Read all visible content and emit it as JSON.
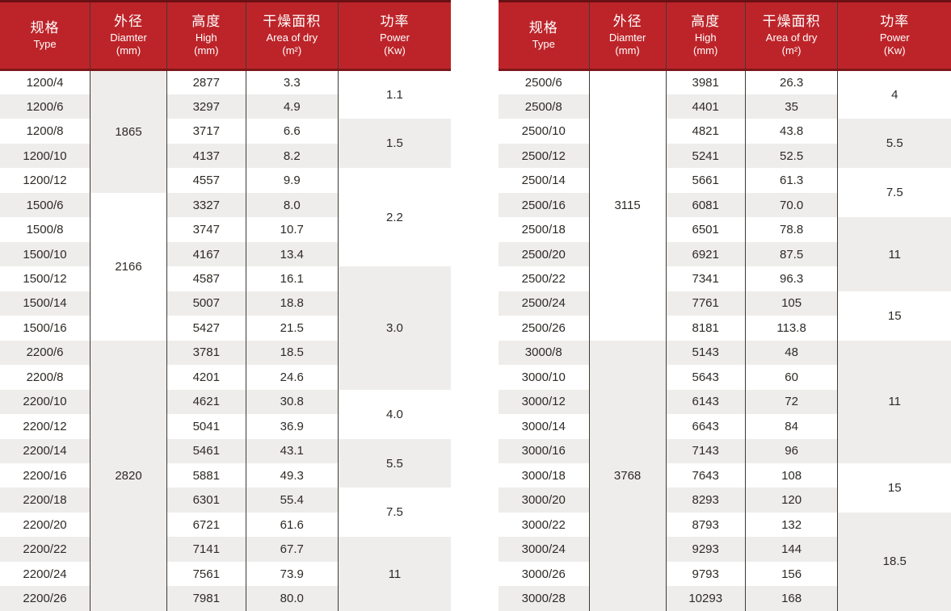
{
  "palette": {
    "header_red": "#bd2429",
    "maroon_top": "#6b1013",
    "maroon_line": "#7d171a",
    "stripe_gray": "#eeedeb",
    "row_white": "#ffffff",
    "border": "#3e3a35",
    "text": "#2e2a26",
    "header_text": "#ffffff"
  },
  "columns": [
    {
      "key": "type",
      "zh": "规格",
      "en": "Type",
      "unit": ""
    },
    {
      "key": "diameter",
      "zh": "外径",
      "en": "Diamter",
      "unit": "(mm)"
    },
    {
      "key": "high",
      "zh": "高度",
      "en": "High",
      "unit": "(mm)"
    },
    {
      "key": "area",
      "zh": "干燥面积",
      "en": "Area of dry",
      "unit": "(m²)"
    },
    {
      "key": "power",
      "zh": "功率",
      "en": "Power",
      "unit": "(Kw)"
    }
  ],
  "tables": [
    {
      "id": "left",
      "rows": [
        {
          "type": "1200/4",
          "high": "2877",
          "area": "3.3"
        },
        {
          "type": "1200/6",
          "high": "3297",
          "area": "4.9"
        },
        {
          "type": "1200/8",
          "high": "3717",
          "area": "6.6"
        },
        {
          "type": "1200/10",
          "high": "4137",
          "area": "8.2"
        },
        {
          "type": "1200/12",
          "high": "4557",
          "area": "9.9"
        },
        {
          "type": "1500/6",
          "high": "3327",
          "area": "8.0"
        },
        {
          "type": "1500/8",
          "high": "3747",
          "area": "10.7"
        },
        {
          "type": "1500/10",
          "high": "4167",
          "area": "13.4"
        },
        {
          "type": "1500/12",
          "high": "4587",
          "area": "16.1"
        },
        {
          "type": "1500/14",
          "high": "5007",
          "area": "18.8"
        },
        {
          "type": "1500/16",
          "high": "5427",
          "area": "21.5"
        },
        {
          "type": "2200/6",
          "high": "3781",
          "area": "18.5"
        },
        {
          "type": "2200/8",
          "high": "4201",
          "area": "24.6"
        },
        {
          "type": "2200/10",
          "high": "4621",
          "area": "30.8"
        },
        {
          "type": "2200/12",
          "high": "5041",
          "area": "36.9"
        },
        {
          "type": "2200/14",
          "high": "5461",
          "area": "43.1"
        },
        {
          "type": "2200/16",
          "high": "5881",
          "area": "49.3"
        },
        {
          "type": "2200/18",
          "high": "6301",
          "area": "55.4"
        },
        {
          "type": "2200/20",
          "high": "6721",
          "area": "61.6"
        },
        {
          "type": "2200/22",
          "high": "7141",
          "area": "67.7"
        },
        {
          "type": "2200/24",
          "high": "7561",
          "area": "73.9"
        },
        {
          "type": "2200/26",
          "high": "7981",
          "area": "80.0"
        }
      ],
      "diameter_groups": [
        {
          "value": "1865",
          "rowspan": 5,
          "shade": "gray"
        },
        {
          "value": "2166",
          "rowspan": 6,
          "shade": "white"
        },
        {
          "value": "2820",
          "rowspan": 11,
          "shade": "gray"
        }
      ],
      "power_groups": [
        {
          "value": "1.1",
          "rowspan": 2,
          "shade": "white"
        },
        {
          "value": "1.5",
          "rowspan": 2,
          "shade": "gray"
        },
        {
          "value": "2.2",
          "rowspan": 4,
          "shade": "white"
        },
        {
          "value": "3.0",
          "rowspan": 5,
          "shade": "gray"
        },
        {
          "value": "4.0",
          "rowspan": 2,
          "shade": "white"
        },
        {
          "value": "5.5",
          "rowspan": 2,
          "shade": "gray"
        },
        {
          "value": "7.5",
          "rowspan": 2,
          "shade": "white"
        },
        {
          "value": "11",
          "rowspan": 3,
          "shade": "gray"
        }
      ]
    },
    {
      "id": "right",
      "rows": [
        {
          "type": "2500/6",
          "high": "3981",
          "area": "26.3"
        },
        {
          "type": "2500/8",
          "high": "4401",
          "area": "35"
        },
        {
          "type": "2500/10",
          "high": "4821",
          "area": "43.8"
        },
        {
          "type": "2500/12",
          "high": "5241",
          "area": "52.5"
        },
        {
          "type": "2500/14",
          "high": "5661",
          "area": "61.3"
        },
        {
          "type": "2500/16",
          "high": "6081",
          "area": "70.0"
        },
        {
          "type": "2500/18",
          "high": "6501",
          "area": "78.8"
        },
        {
          "type": "2500/20",
          "high": "6921",
          "area": "87.5"
        },
        {
          "type": "2500/22",
          "high": "7341",
          "area": "96.3"
        },
        {
          "type": "2500/24",
          "high": "7761",
          "area": "105"
        },
        {
          "type": "2500/26",
          "high": "8181",
          "area": "113.8"
        },
        {
          "type": "3000/8",
          "high": "5143",
          "area": "48"
        },
        {
          "type": "3000/10",
          "high": "5643",
          "area": "60"
        },
        {
          "type": "3000/12",
          "high": "6143",
          "area": "72"
        },
        {
          "type": "3000/14",
          "high": "6643",
          "area": "84"
        },
        {
          "type": "3000/16",
          "high": "7143",
          "area": "96"
        },
        {
          "type": "3000/18",
          "high": "7643",
          "area": "108"
        },
        {
          "type": "3000/20",
          "high": "8293",
          "area": "120"
        },
        {
          "type": "3000/22",
          "high": "8793",
          "area": "132"
        },
        {
          "type": "3000/24",
          "high": "9293",
          "area": "144"
        },
        {
          "type": "3000/26",
          "high": "9793",
          "area": "156"
        },
        {
          "type": "3000/28",
          "high": "10293",
          "area": "168"
        }
      ],
      "diameter_groups": [
        {
          "value": "3115",
          "rowspan": 11,
          "shade": "white"
        },
        {
          "value": "3768",
          "rowspan": 11,
          "shade": "gray"
        }
      ],
      "power_groups": [
        {
          "value": "4",
          "rowspan": 2,
          "shade": "white"
        },
        {
          "value": "5.5",
          "rowspan": 2,
          "shade": "gray"
        },
        {
          "value": "7.5",
          "rowspan": 2,
          "shade": "white"
        },
        {
          "value": "11",
          "rowspan": 3,
          "shade": "gray"
        },
        {
          "value": "15",
          "rowspan": 2,
          "shade": "white"
        },
        {
          "value": "11",
          "rowspan": 5,
          "shade": "gray"
        },
        {
          "value": "15",
          "rowspan": 2,
          "shade": "white"
        },
        {
          "value": "18.5",
          "rowspan": 4,
          "shade": "gray"
        }
      ]
    }
  ]
}
